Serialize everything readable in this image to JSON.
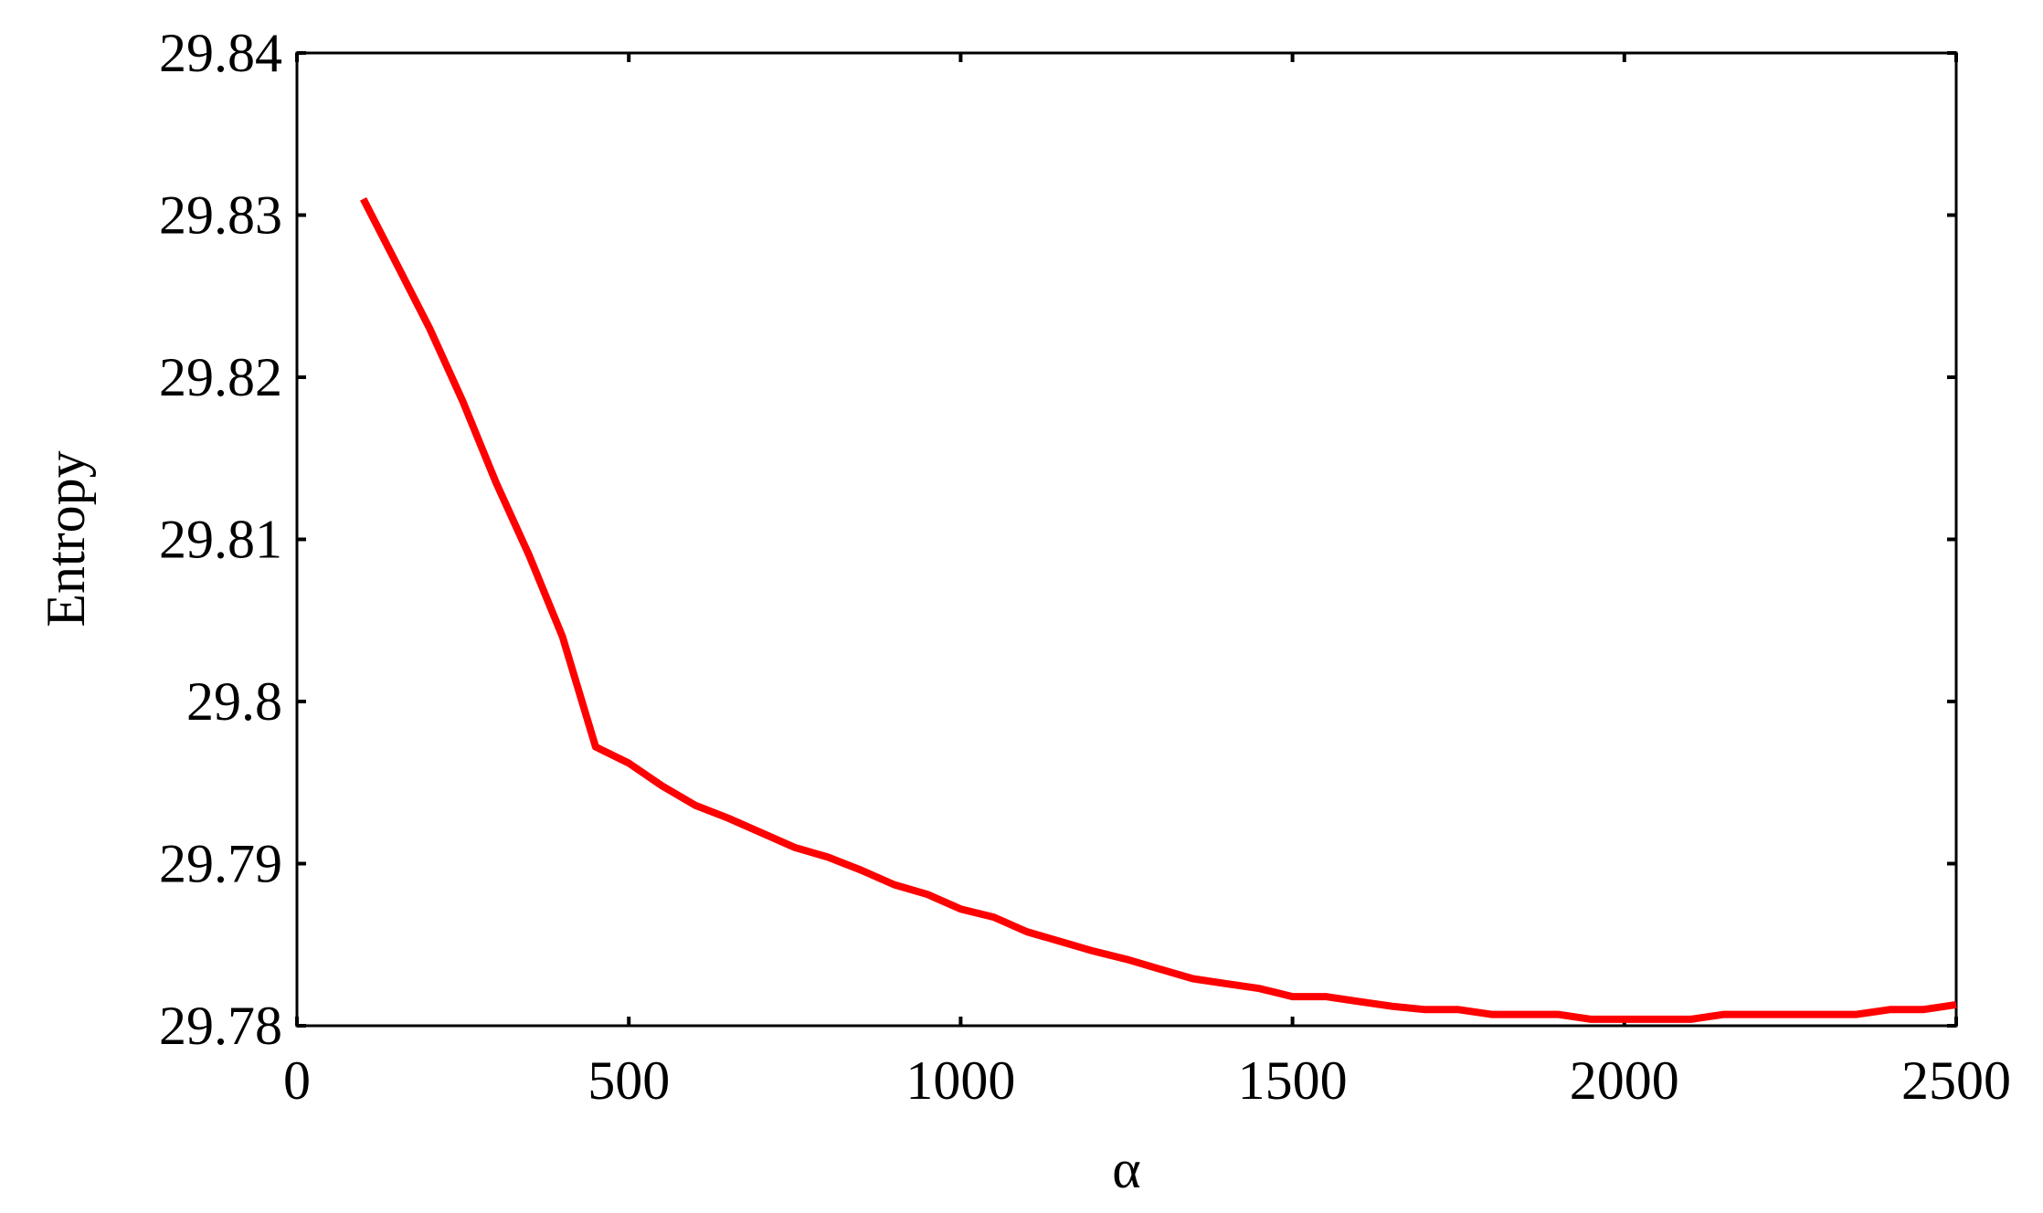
{
  "chart_data": {
    "type": "line",
    "title": "",
    "xlabel": "α",
    "ylabel": "Entropy",
    "xlim": [
      0,
      2500
    ],
    "ylim": [
      29.78,
      29.84
    ],
    "xticks": [
      0,
      500,
      1000,
      1500,
      2000,
      2500
    ],
    "xtick_labels": [
      "0",
      "500",
      "1000",
      "1500",
      "2000",
      "2500"
    ],
    "yticks": [
      29.78,
      29.79,
      29.8,
      29.81,
      29.82,
      29.83,
      29.84
    ],
    "ytick_labels": [
      "29.78",
      "29.79",
      "29.8",
      "29.81",
      "29.82",
      "29.83",
      "29.84"
    ],
    "grid": false,
    "series": [
      {
        "color": "#ff0000",
        "x": [
          100,
          150,
          200,
          250,
          300,
          350,
          400,
          450,
          500,
          550,
          600,
          650,
          700,
          750,
          800,
          850,
          900,
          950,
          1000,
          1050,
          1100,
          1150,
          1200,
          1250,
          1300,
          1350,
          1400,
          1450,
          1500,
          1550,
          1600,
          1650,
          1700,
          1750,
          1800,
          1850,
          1900,
          1950,
          2000,
          2050,
          2100,
          2150,
          2200,
          2250,
          2300,
          2350,
          2400,
          2450,
          2500
        ],
        "y": [
          29.831,
          29.827,
          29.823,
          29.8185,
          29.8135,
          29.809,
          29.804,
          29.7972,
          29.7962,
          29.7948,
          29.7936,
          29.7928,
          29.7919,
          29.791,
          29.7904,
          29.7896,
          29.7887,
          29.7881,
          29.7872,
          29.7867,
          29.7858,
          29.7852,
          29.7846,
          29.7841,
          29.7835,
          29.7829,
          29.7826,
          29.7823,
          29.7818,
          29.7818,
          29.7815,
          29.7812,
          29.781,
          29.781,
          29.7807,
          29.7807,
          29.7807,
          29.7804,
          29.7804,
          29.7804,
          29.7804,
          29.7807,
          29.7807,
          29.7807,
          29.7807,
          29.7807,
          29.781,
          29.781,
          29.7813
        ]
      }
    ]
  }
}
